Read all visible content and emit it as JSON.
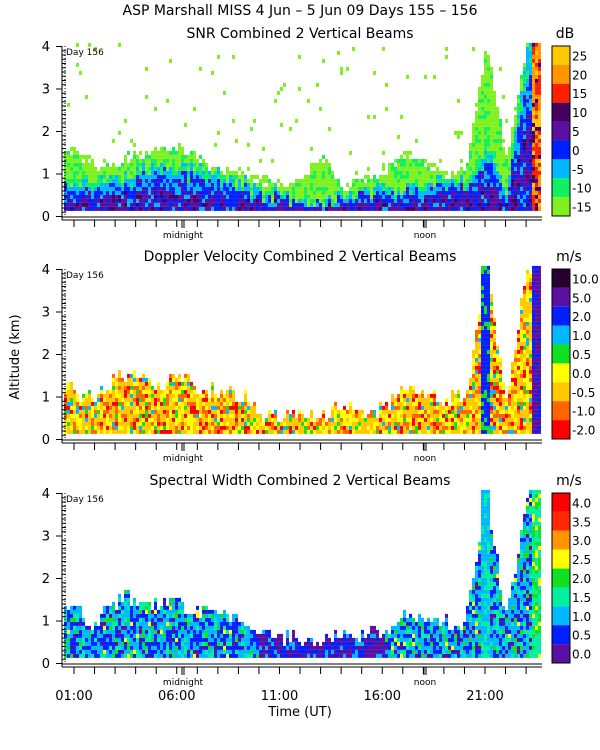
{
  "header": {
    "title": "ASP Marshall MISS    4 Jun –  5 Jun 09 Days 155 – 156"
  },
  "axes": {
    "ylabel": "Altitude (km)",
    "xlabel": "Time (UT)",
    "yticks": [
      "0",
      "1",
      "2",
      "3",
      "4"
    ],
    "xticks": [
      "01:00",
      "06:00",
      "11:00",
      "16:00",
      "21:00"
    ],
    "midnight_label": "midnight",
    "noon_label": "noon",
    "day_label": "Day 156"
  },
  "chart_data": [
    {
      "type": "heatmap",
      "title": "SNR Combined 2 Vertical Beams",
      "unit": "dB",
      "xlabel": "",
      "ylabel": "Altitude (km)",
      "xlim_hours_ut": [
        0.4,
        24
      ],
      "ylim": [
        0,
        4
      ],
      "colorbar": {
        "labels": [
          "25",
          "20",
          "15",
          "10",
          "5",
          "0",
          "-5",
          "-10",
          "-15"
        ],
        "colors": [
          "#ffc800",
          "#ff9600",
          "#ff2000",
          "#480060",
          "#5a10a0",
          "#0020ff",
          "#00b8ff",
          "#10f060",
          "#80f020"
        ]
      },
      "echo_top_km_by_hour": {
        "hours": [
          1,
          2,
          3,
          4,
          5,
          6,
          7,
          8,
          9,
          10,
          11,
          12,
          13,
          14,
          15,
          16,
          17,
          18,
          19,
          20,
          21,
          22,
          23
        ],
        "core_top_km": [
          0.8,
          0.7,
          0.9,
          1.0,
          1.2,
          1.1,
          1.0,
          0.9,
          0.8,
          0.5,
          0.4,
          0.3,
          0.3,
          0.4,
          0.5,
          0.6,
          0.7,
          0.8,
          0.8,
          0.7,
          1.5,
          0.6,
          4.0
        ],
        "weak_top_km": [
          1.5,
          1.2,
          1.2,
          1.4,
          1.5,
          1.6,
          1.3,
          1.0,
          1.0,
          0.8,
          0.7,
          0.8,
          1.4,
          0.6,
          0.9,
          0.9,
          1.4,
          1.2,
          0.9,
          1.0,
          4.0,
          1.3,
          4.0
        ]
      }
    },
    {
      "type": "heatmap",
      "title": "Doppler Velocity Combined 2 Vertical Beams",
      "unit": "m/s",
      "xlabel": "",
      "ylabel": "Altitude (km)",
      "xlim_hours_ut": [
        0.4,
        24
      ],
      "ylim": [
        0,
        4
      ],
      "colorbar": {
        "labels": [
          "10.0",
          "5.0",
          "2.0",
          "1.0",
          "0.5",
          "0.0",
          "-0.5",
          "-1.0",
          "-2.0"
        ],
        "colors": [
          "#280030",
          "#5a10a0",
          "#0020ff",
          "#00b8ff",
          "#10e020",
          "#ffff00",
          "#ffc800",
          "#ff6400",
          "#ff0000"
        ]
      },
      "echo_top_km_by_hour": {
        "hours": [
          1,
          2,
          3,
          4,
          5,
          6,
          7,
          8,
          9,
          10,
          11,
          12,
          13,
          14,
          15,
          16,
          17,
          18,
          19,
          20,
          21,
          22,
          23
        ],
        "top_km": [
          1.1,
          0.9,
          1.4,
          1.5,
          1.3,
          1.4,
          1.2,
          1.1,
          1.0,
          0.6,
          0.5,
          0.5,
          0.5,
          0.7,
          0.6,
          0.7,
          1.1,
          1.0,
          0.9,
          0.9,
          4.0,
          0.9,
          4.0
        ]
      }
    },
    {
      "type": "heatmap",
      "title": "Spectral Width Combined 2 Vertical Beams",
      "unit": "m/s",
      "xlabel": "Time (UT)",
      "ylabel": "Altitude (km)",
      "xlim_hours_ut": [
        0.4,
        24
      ],
      "ylim": [
        0,
        4
      ],
      "colorbar": {
        "labels": [
          "4.0",
          "3.5",
          "3.0",
          "2.5",
          "2.0",
          "1.5",
          "1.0",
          "0.5",
          "0.0"
        ],
        "colors": [
          "#ff0000",
          "#ff2800",
          "#ff9600",
          "#ffff00",
          "#10e020",
          "#00f0a0",
          "#00b8ff",
          "#0020ff",
          "#5a10a0"
        ]
      },
      "echo_top_km_by_hour": {
        "hours": [
          1,
          2,
          3,
          4,
          5,
          6,
          7,
          8,
          9,
          10,
          11,
          12,
          13,
          14,
          15,
          16,
          17,
          18,
          19,
          20,
          21,
          22,
          23
        ],
        "top_km": [
          1.2,
          0.9,
          1.4,
          1.5,
          1.3,
          1.4,
          1.2,
          1.1,
          1.0,
          0.6,
          0.5,
          0.5,
          0.5,
          0.7,
          0.6,
          0.7,
          1.1,
          1.0,
          0.9,
          0.9,
          4.0,
          0.9,
          4.0
        ]
      }
    }
  ]
}
